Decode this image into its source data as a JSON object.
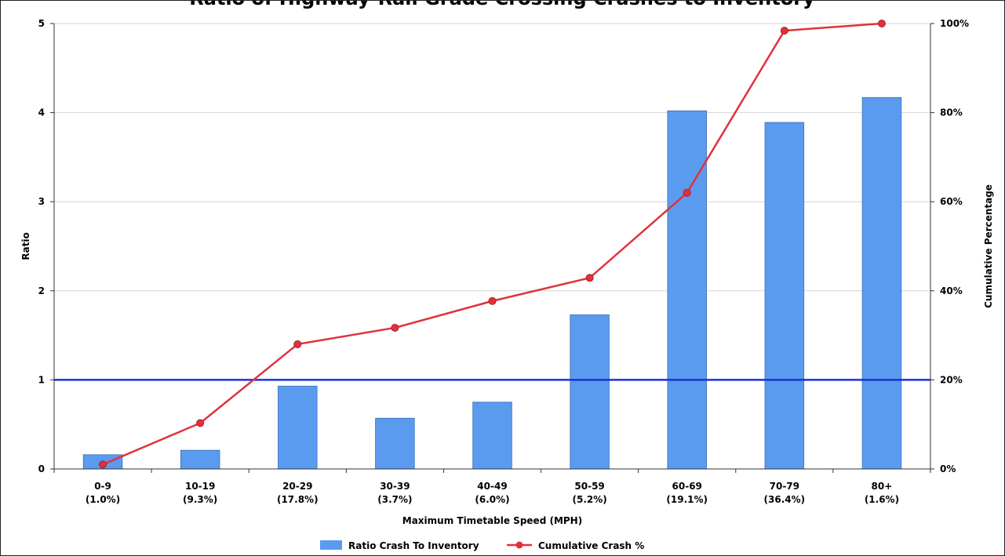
{
  "chart_data": {
    "type": "bar",
    "title": "",
    "xlabel": "Maximum Timetable Speed (MPH)",
    "ylabel": "Ratio",
    "y2label": "Cumulative Percentage",
    "categories": [
      {
        "name": "0-9",
        "share": "(1.0%)"
      },
      {
        "name": "10-19",
        "share": "(9.3%)"
      },
      {
        "name": "20-29",
        "share": "(17.8%)"
      },
      {
        "name": "30-39",
        "share": "(3.7%)"
      },
      {
        "name": "40-49",
        "share": "(6.0%)"
      },
      {
        "name": "50-59",
        "share": "(5.2%)"
      },
      {
        "name": "60-69",
        "share": "(19.1%)"
      },
      {
        "name": "70-79",
        "share": "(36.4%)"
      },
      {
        "name": "80+",
        "share": "(1.6%)"
      }
    ],
    "series": [
      {
        "name": "Ratio Crash To Inventory",
        "type": "bar",
        "axis": "left",
        "color": "#5b9bef",
        "values": [
          0.16,
          0.21,
          0.93,
          0.57,
          0.75,
          1.73,
          4.02,
          3.89,
          4.17
        ]
      },
      {
        "name": "Cumulative Crash %",
        "type": "line",
        "axis": "right",
        "color": "#e0323c",
        "values": [
          1,
          10.3,
          28,
          31.7,
          37.7,
          42.9,
          62,
          98.4,
          100
        ]
      }
    ],
    "ylim": [
      0,
      5
    ],
    "yticks": [
      "0",
      "1",
      "2",
      "3",
      "4",
      "5"
    ],
    "y2lim": [
      0,
      100
    ],
    "y2ticks": [
      "0%",
      "20%",
      "40%",
      "60%",
      "80%",
      "100%"
    ],
    "reference_line": {
      "y": 1,
      "color": "#1a33d6"
    },
    "grid": true,
    "legend": "bottom-center"
  },
  "title_clipped": "Ratio of Highway-Rail Grade Crossing Crashes to Inventory"
}
